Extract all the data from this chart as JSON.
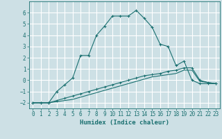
{
  "title": "",
  "xlabel": "Humidex (Indice chaleur)",
  "xlim": [
    -0.5,
    23.5
  ],
  "ylim": [
    -2.5,
    7.0
  ],
  "yticks": [
    -2,
    -1,
    0,
    1,
    2,
    3,
    4,
    5,
    6
  ],
  "xticks": [
    0,
    1,
    2,
    3,
    4,
    5,
    6,
    7,
    8,
    9,
    10,
    11,
    12,
    13,
    14,
    15,
    16,
    17,
    18,
    19,
    20,
    21,
    22,
    23
  ],
  "bg_color": "#cde0e5",
  "grid_color": "#ffffff",
  "line_color": "#1a7070",
  "series": {
    "line1_x": [
      0,
      1,
      2,
      3,
      4,
      5,
      6,
      7,
      8,
      9,
      10,
      11,
      12,
      13,
      14,
      15,
      16,
      17,
      18,
      19,
      20,
      21,
      22,
      23
    ],
    "line1_y": [
      -2.0,
      -2.0,
      -2.0,
      -1.0,
      -0.4,
      0.2,
      2.2,
      2.2,
      4.0,
      4.8,
      5.7,
      5.7,
      5.7,
      6.2,
      5.5,
      4.7,
      3.2,
      3.0,
      1.3,
      1.7,
      0.0,
      -0.3,
      -0.3,
      -0.3
    ],
    "line2_x": [
      0,
      1,
      2,
      3,
      4,
      5,
      6,
      7,
      8,
      9,
      10,
      11,
      12,
      13,
      14,
      15,
      16,
      17,
      18,
      19,
      20,
      21,
      22,
      23
    ],
    "line2_y": [
      -2.0,
      -2.0,
      -2.0,
      -1.8,
      -1.6,
      -1.4,
      -1.2,
      -1.0,
      -0.8,
      -0.6,
      -0.4,
      -0.2,
      0.0,
      0.2,
      0.4,
      0.5,
      0.6,
      0.8,
      0.9,
      1.1,
      1.1,
      0.0,
      -0.2,
      -0.3
    ],
    "line3_x": [
      0,
      1,
      2,
      3,
      4,
      5,
      6,
      7,
      8,
      9,
      10,
      11,
      12,
      13,
      14,
      15,
      16,
      17,
      18,
      19,
      20,
      21,
      22,
      23
    ],
    "line3_y": [
      -2.0,
      -2.0,
      -2.0,
      -1.9,
      -1.8,
      -1.7,
      -1.5,
      -1.3,
      -1.1,
      -0.9,
      -0.7,
      -0.5,
      -0.3,
      -0.1,
      0.1,
      0.3,
      0.4,
      0.5,
      0.6,
      0.9,
      0.9,
      -0.1,
      -0.2,
      -0.3
    ]
  }
}
